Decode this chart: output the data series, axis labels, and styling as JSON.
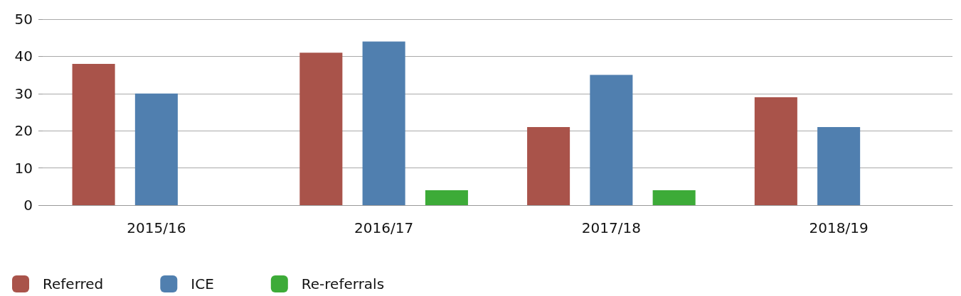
{
  "chart_data": {
    "type": "bar",
    "categories": [
      "2015/16",
      "2016/17",
      "2017/18",
      "2018/19"
    ],
    "series": [
      {
        "name": "Referred",
        "color": "#a9534a",
        "values": [
          38,
          41,
          21,
          29
        ]
      },
      {
        "name": "ICE",
        "color": "#507faf",
        "values": [
          30,
          44,
          35,
          21
        ]
      },
      {
        "name": "Re-referrals",
        "color": "#3dab38",
        "values": [
          0,
          4,
          4,
          0
        ]
      }
    ],
    "ylim": [
      0,
      50
    ],
    "yticks": [
      0,
      10,
      20,
      30,
      40,
      50
    ],
    "grid": "y",
    "legend": "bottom left"
  }
}
